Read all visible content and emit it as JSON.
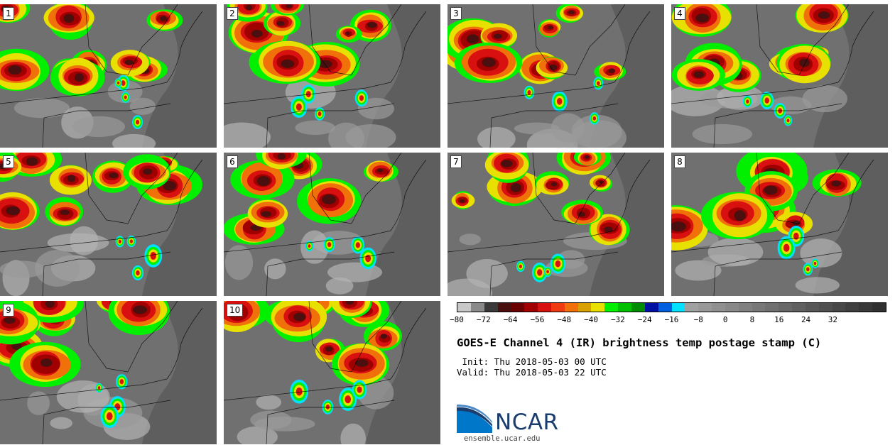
{
  "panels": [
    {
      "label": "1",
      "seed": 11
    },
    {
      "label": "2",
      "seed": 23
    },
    {
      "label": "3",
      "seed": 37
    },
    {
      "label": "4",
      "seed": 41
    },
    {
      "label": "5",
      "seed": 53
    },
    {
      "label": "6",
      "seed": 67
    },
    {
      "label": "7",
      "seed": 71
    },
    {
      "label": "8",
      "seed": 83
    },
    {
      "label": "9",
      "seed": 97
    },
    {
      "label": "10",
      "seed": 101
    }
  ],
  "colorbar": {
    "colors": [
      "#c8c8c8",
      "#8a8a8a",
      "#3a3a3a",
      "#4a1010",
      "#6a0000",
      "#a00000",
      "#d81010",
      "#f03a10",
      "#f0700a",
      "#d8a000",
      "#e8e000",
      "#00f000",
      "#00c000",
      "#008c00",
      "#0010a0",
      "#0060e0",
      "#00e0ff",
      "#a0a0a0",
      "#989898",
      "#909090",
      "#888888",
      "#808080",
      "#787878",
      "#707070",
      "#686868",
      "#606060",
      "#585858",
      "#505050",
      "#484848",
      "#404040",
      "#383838",
      "#303030"
    ],
    "tick_labels": [
      "−80",
      "−72",
      "−64",
      "−56",
      "−48",
      "−40",
      "−32",
      "−24",
      "−16",
      "−8",
      "0",
      "8",
      "16",
      "24",
      "32"
    ]
  },
  "title": "GOES-E Channel 4 (IR) brightness temp postage stamp (C)",
  "init": " Init: Thu 2018-05-03 00 UTC",
  "valid": "Valid: Thu 2018-05-03 22 UTC",
  "logo": {
    "text": "NCAR",
    "icon": "ncar-logo-icon",
    "color": "#1a3d6d",
    "accent": "#0077c8"
  },
  "site": "ensemble.ucar.edu"
}
